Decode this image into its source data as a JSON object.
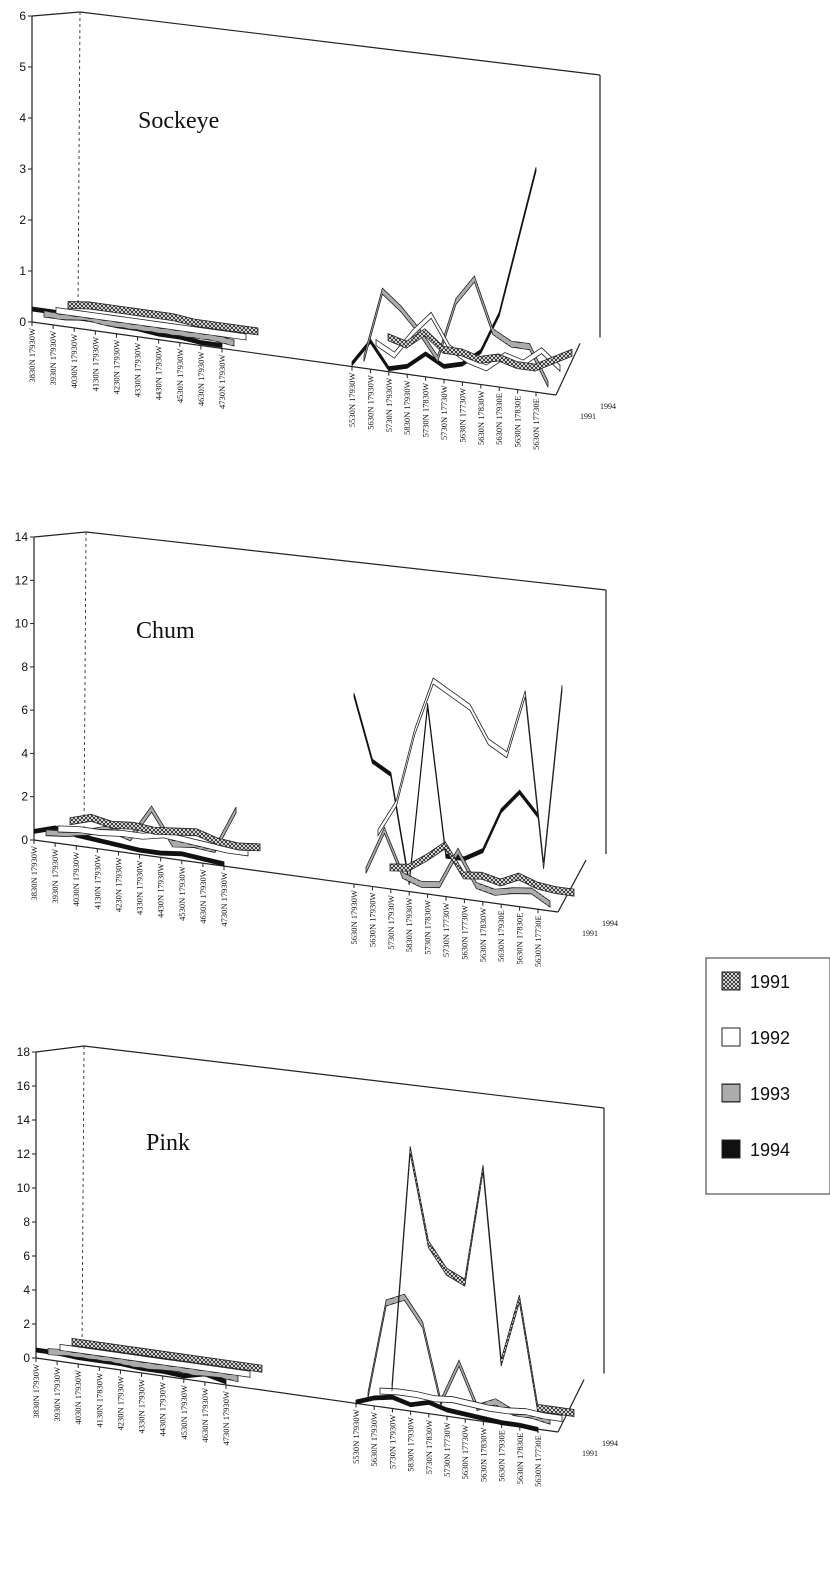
{
  "legend": {
    "entries": [
      {
        "label": "1991",
        "pattern": "cross"
      },
      {
        "label": "1992",
        "pattern": "open"
      },
      {
        "label": "1993",
        "pattern": "hstripe"
      },
      {
        "label": "1994",
        "pattern": "solid"
      }
    ]
  },
  "chart_data": [
    {
      "type": "line",
      "title": "Sockeye",
      "ylim": [
        0,
        6
      ],
      "yticks": [
        0,
        1,
        2,
        3,
        4,
        5,
        6
      ],
      "depth_labels": [
        "1994",
        "1991"
      ],
      "categories": [
        "3830N 17930W",
        "3930N 17930W",
        "4030N 17930W",
        "4130N 17930W",
        "4230N 17930W",
        "4330N 17930W",
        "4430N 17930W",
        "4530N 17930W",
        "4630N 17930W",
        "4730N 17930W",
        "5530N 17930W",
        "5630N 17930W",
        "5730N 17930W",
        "5830N 17930W",
        "5730N 17830W",
        "5730N 17730W",
        "5630N 17730W",
        "5630N 17830W",
        "5630N 17930E",
        "5630N 17830E",
        "5630N 17730E"
      ],
      "series": [
        {
          "name": "1991",
          "pattern": "cross",
          "values": [
            0.05,
            0.1,
            0.1,
            0.1,
            0.1,
            0.1,
            0.05,
            0.05,
            0.05,
            0.05,
            0.3,
            0.2,
            0.5,
            0.2,
            0.2,
            0.1,
            0.2,
            0.1,
            0.1,
            0.3,
            0.5
          ]
        },
        {
          "name": "1992",
          "pattern": "open",
          "values": [
            0.05,
            0.05,
            0.05,
            0.05,
            0.05,
            0.05,
            0.05,
            0.05,
            0.05,
            0.05,
            0.3,
            0.1,
            0.6,
            1.0,
            0.4,
            0.2,
            0.1,
            0.4,
            0.3,
            0.6,
            0.3
          ]
        },
        {
          "name": "1993",
          "pattern": "hstripe",
          "values": [
            0.1,
            0.1,
            0.15,
            0.1,
            0.1,
            0.1,
            0.1,
            0.1,
            0.1,
            0.05,
            0.1,
            1.5,
            1.2,
            0.8,
            0.3,
            1.5,
            2.0,
            1.0,
            0.8,
            0.8,
            0.1
          ]
        },
        {
          "name": "1994",
          "pattern": "solid",
          "values": [
            0.3,
            0.3,
            0.25,
            0.25,
            0.2,
            0.2,
            0.15,
            0.15,
            0.1,
            0.1,
            0.1,
            0.6,
            0.1,
            0.2,
            0.5,
            0.3,
            0.4,
            0.7,
            1.5,
            3.0,
            4.5
          ]
        }
      ]
    },
    {
      "type": "line",
      "title": "Chum",
      "ylim": [
        0,
        14
      ],
      "yticks": [
        0,
        2,
        4,
        6,
        8,
        10,
        12,
        14
      ],
      "depth_labels": [
        "1994",
        "1991"
      ],
      "categories": [
        "3830N 17930W",
        "3930N 17930W",
        "4030N 17930W",
        "4130N 17930W",
        "4230N 17930W",
        "4330N 17930W",
        "4430N 17930W",
        "4530N 17930W",
        "4630N 17930W",
        "4730N 17930W",
        "5630N 17930W",
        "5630N 17930W",
        "5730N 17930W",
        "5830N 17930W",
        "5730N 17830W",
        "5730N 17730W",
        "5630N 17730W",
        "5630N 17830W",
        "5630N 17930E",
        "5630N 17830E",
        "5630N 17730E"
      ],
      "series": [
        {
          "name": "1991",
          "pattern": "cross",
          "values": [
            0.2,
            0.5,
            0.3,
            0.4,
            0.3,
            0.4,
            0.5,
            0.2,
            0.1,
            0.2,
            0.1,
            0.2,
            0.8,
            1.5,
            0.2,
            0.3,
            0.1,
            0.5,
            0.2,
            0.1,
            0.1
          ]
        },
        {
          "name": "1992",
          "pattern": "open",
          "values": [
            0.1,
            0.2,
            0.2,
            0.3,
            0.3,
            0.5,
            0.4,
            0.3,
            0.2,
            0.2,
            2.0,
            3.5,
            7.0,
            9.5,
            9.0,
            8.5,
            7.0,
            6.5,
            9.5,
            1.5,
            10.0
          ]
        },
        {
          "name": "1993",
          "pattern": "hstripe",
          "values": [
            0.2,
            0.3,
            0.5,
            0.8,
            0.5,
            2.0,
            0.5,
            0.6,
            0.5,
            2.5,
            0.5,
            2.5,
            0.5,
            0.2,
            0.3,
            2.0,
            0.5,
            0.3,
            0.5,
            0.6,
            0.1
          ]
        },
        {
          "name": "1994",
          "pattern": "solid",
          "values": [
            0.5,
            0.8,
            0.6,
            0.5,
            0.4,
            0.3,
            0.3,
            0.4,
            0.3,
            0.2,
            9.0,
            6.0,
            5.5,
            0.5,
            9.0,
            2.0,
            2.0,
            2.5,
            4.5,
            5.5,
            4.5
          ]
        }
      ]
    },
    {
      "type": "line",
      "title": "Pink",
      "ylim": [
        0,
        18
      ],
      "yticks": [
        0,
        2,
        4,
        6,
        8,
        10,
        12,
        14,
        16,
        18
      ],
      "depth_labels": [
        "1994",
        "1991"
      ],
      "categories": [
        "3830N 17930W",
        "3930N 17930W",
        "4030N 17930W",
        "4130N 17830W",
        "4230N 17930W",
        "4330N 17930W",
        "4430N 17930W",
        "4530N 17930W",
        "4630N 17930W",
        "4730N 17930W",
        "5530N 17930W",
        "5630N 17930W",
        "5730N 17930W",
        "5830N 17930W",
        "5730N 17830W",
        "5730N 17730W",
        "5630N 17730W",
        "5630N 17830W",
        "5630N 17930E",
        "5630N 17830E",
        "5630N 17730E"
      ],
      "series": [
        {
          "name": "1991",
          "pattern": "cross",
          "values": [
            0.1,
            0.1,
            0.1,
            0.1,
            0.1,
            0.1,
            0.1,
            0.1,
            0.1,
            0.1,
            0.1,
            14.5,
            9.0,
            7.5,
            7.0,
            14.0,
            2.5,
            6.5,
            0.1,
            0.1,
            0.1
          ]
        },
        {
          "name": "1992",
          "pattern": "open",
          "values": [
            0.1,
            0.1,
            0.1,
            0.1,
            0.1,
            0.1,
            0.1,
            0.1,
            0.1,
            0.1,
            0.2,
            0.3,
            0.3,
            0.2,
            0.3,
            0.2,
            0.1,
            0.1,
            0.2,
            0.1,
            0.1
          ]
        },
        {
          "name": "1993",
          "pattern": "hstripe",
          "values": [
            0.2,
            0.3,
            0.3,
            0.3,
            0.2,
            0.2,
            0.3,
            0.2,
            0.3,
            0.2,
            0.3,
            6.0,
            6.5,
            5.0,
            0.5,
            3.0,
            0.5,
            1.0,
            0.5,
            0.5,
            0.3
          ]
        },
        {
          "name": "1994",
          "pattern": "solid",
          "values": [
            0.6,
            0.6,
            0.5,
            0.5,
            0.5,
            0.4,
            0.4,
            0.3,
            0.6,
            0.3,
            0.2,
            0.6,
            0.8,
            0.5,
            0.8,
            0.5,
            0.4,
            0.3,
            0.2,
            0.2,
            0.1
          ]
        }
      ]
    }
  ]
}
